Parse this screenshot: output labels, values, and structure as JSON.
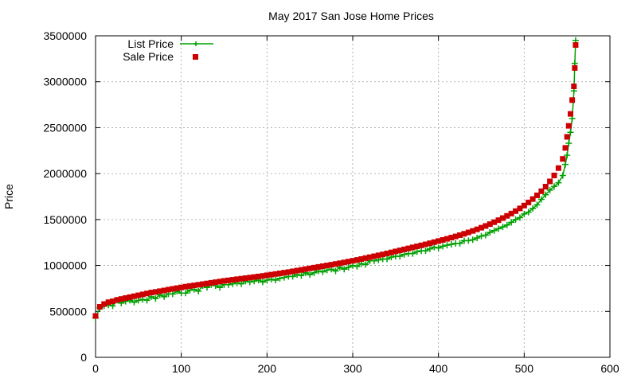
{
  "chart_data": {
    "type": "scatter",
    "title": "May 2017 San Jose Home Prices",
    "xlabel": "",
    "ylabel": "Price",
    "xlim": [
      0,
      600
    ],
    "ylim": [
      0,
      3500000
    ],
    "x_ticks": [
      0,
      100,
      200,
      300,
      400,
      500,
      600
    ],
    "y_ticks": [
      0,
      500000,
      1000000,
      1500000,
      2000000,
      2500000,
      3000000,
      3500000
    ],
    "x_tick_labels": [
      "0",
      "100",
      "200",
      "300",
      "400",
      "500",
      "600"
    ],
    "y_tick_labels": [
      "0",
      "500000",
      "1000000",
      "1500000",
      "2000000",
      "2500000",
      "3000000",
      "3500000"
    ],
    "grid": true,
    "legend_position": "top-left",
    "series": [
      {
        "name": "List Price",
        "style": "linespoints",
        "marker": "plus",
        "color": "#00a000",
        "x": [
          0,
          5,
          10,
          15,
          20,
          25,
          30,
          35,
          40,
          45,
          50,
          55,
          60,
          65,
          70,
          75,
          80,
          85,
          90,
          95,
          100,
          105,
          110,
          115,
          120,
          125,
          130,
          135,
          140,
          145,
          150,
          155,
          160,
          165,
          170,
          175,
          180,
          185,
          190,
          195,
          200,
          205,
          210,
          215,
          220,
          225,
          230,
          235,
          240,
          245,
          250,
          255,
          260,
          265,
          270,
          275,
          280,
          285,
          290,
          295,
          300,
          305,
          310,
          315,
          320,
          325,
          330,
          335,
          340,
          345,
          350,
          355,
          360,
          365,
          370,
          375,
          380,
          385,
          390,
          395,
          400,
          405,
          410,
          415,
          420,
          425,
          430,
          435,
          440,
          445,
          450,
          455,
          460,
          465,
          470,
          475,
          480,
          485,
          490,
          495,
          500,
          505,
          510,
          515,
          520,
          525,
          530,
          535,
          540,
          545,
          548,
          550,
          552,
          554,
          556,
          558,
          559,
          560
        ],
        "y": [
          430000,
          540000,
          560000,
          570000,
          560000,
          620000,
          590000,
          610000,
          620000,
          600000,
          620000,
          630000,
          620000,
          660000,
          640000,
          680000,
          660000,
          690000,
          690000,
          720000,
          700000,
          700000,
          730000,
          740000,
          720000,
          780000,
          760000,
          790000,
          780000,
          760000,
          790000,
          790000,
          800000,
          810000,
          800000,
          830000,
          820000,
          830000,
          840000,
          820000,
          840000,
          850000,
          840000,
          860000,
          870000,
          880000,
          880000,
          900000,
          890000,
          920000,
          900000,
          920000,
          940000,
          930000,
          950000,
          960000,
          940000,
          980000,
          960000,
          980000,
          1000000,
          990000,
          1020000,
          1010000,
          1050000,
          1050000,
          1060000,
          1070000,
          1070000,
          1090000,
          1100000,
          1100000,
          1120000,
          1130000,
          1130000,
          1150000,
          1160000,
          1160000,
          1180000,
          1200000,
          1190000,
          1210000,
          1220000,
          1230000,
          1240000,
          1240000,
          1270000,
          1270000,
          1280000,
          1300000,
          1320000,
          1330000,
          1360000,
          1380000,
          1400000,
          1420000,
          1440000,
          1470000,
          1500000,
          1520000,
          1560000,
          1580000,
          1620000,
          1660000,
          1720000,
          1770000,
          1820000,
          1860000,
          1900000,
          1980000,
          2100000,
          2200000,
          2330000,
          2450000,
          2600000,
          2900000,
          3200000,
          3450000
        ]
      },
      {
        "name": "Sale Price",
        "style": "points",
        "marker": "square",
        "color": "#cc0000",
        "x": [
          0,
          5,
          10,
          15,
          20,
          25,
          30,
          35,
          40,
          45,
          50,
          55,
          60,
          65,
          70,
          75,
          80,
          85,
          90,
          95,
          100,
          105,
          110,
          115,
          120,
          125,
          130,
          135,
          140,
          145,
          150,
          155,
          160,
          165,
          170,
          175,
          180,
          185,
          190,
          195,
          200,
          205,
          210,
          215,
          220,
          225,
          230,
          235,
          240,
          245,
          250,
          255,
          260,
          265,
          270,
          275,
          280,
          285,
          290,
          295,
          300,
          305,
          310,
          315,
          320,
          325,
          330,
          335,
          340,
          345,
          350,
          355,
          360,
          365,
          370,
          375,
          380,
          385,
          390,
          395,
          400,
          405,
          410,
          415,
          420,
          425,
          430,
          435,
          440,
          445,
          450,
          455,
          460,
          465,
          470,
          475,
          480,
          485,
          490,
          495,
          500,
          505,
          510,
          515,
          520,
          525,
          530,
          535,
          540,
          545,
          548,
          550,
          552,
          554,
          556,
          558,
          559,
          560
        ],
        "y": [
          450000,
          550000,
          580000,
          600000,
          610000,
          625000,
          635000,
          645000,
          655000,
          665000,
          675000,
          685000,
          695000,
          705000,
          712000,
          720000,
          728000,
          737000,
          745000,
          753000,
          761000,
          769000,
          776000,
          783000,
          790000,
          797000,
          804000,
          811000,
          818000,
          825000,
          832000,
          838000,
          844000,
          850000,
          856000,
          862000,
          868000,
          874000,
          880000,
          886000,
          893000,
          900000,
          907000,
          914000,
          921000,
          928000,
          936000,
          944000,
          952000,
          960000,
          968000,
          976000,
          984000,
          992000,
          1000000,
          1008000,
          1016000,
          1024000,
          1033000,
          1042000,
          1051000,
          1060000,
          1070000,
          1080000,
          1090000,
          1100000,
          1110000,
          1120000,
          1131000,
          1142000,
          1153000,
          1164000,
          1175000,
          1186000,
          1197000,
          1208000,
          1219000,
          1230000,
          1242000,
          1254000,
          1266000,
          1278000,
          1290000,
          1303000,
          1316000,
          1330000,
          1345000,
          1360000,
          1376000,
          1393000,
          1411000,
          1430000,
          1450000,
          1471000,
          1493000,
          1516000,
          1540000,
          1565000,
          1592000,
          1621000,
          1652000,
          1686000,
          1723000,
          1763000,
          1808000,
          1858000,
          1915000,
          1980000,
          2060000,
          2160000,
          2280000,
          2400000,
          2520000,
          2650000,
          2800000,
          2950000,
          3150000,
          3400000
        ]
      }
    ]
  }
}
